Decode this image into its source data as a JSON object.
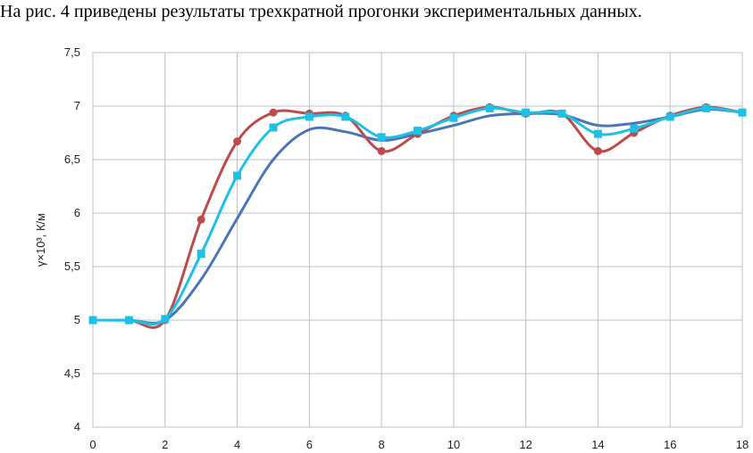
{
  "caption": "На рис. 4 приведены результаты трехкратной прогонки экспериментальных данных.",
  "chart_data": {
    "type": "line",
    "title": "",
    "xlabel": "",
    "ylabel": "γ×10³, К/м",
    "xlim": [
      0,
      18
    ],
    "ylim": [
      4,
      7.5
    ],
    "x_ticks": [
      0,
      2,
      4,
      6,
      8,
      10,
      12,
      14,
      16,
      18
    ],
    "y_ticks": [
      4,
      4.5,
      5,
      5.5,
      6,
      6.5,
      7,
      7.5
    ],
    "x_tick_labels": [
      "0",
      "2",
      "4",
      "6",
      "8",
      "10",
      "12",
      "14",
      "16",
      "18"
    ],
    "y_tick_labels": [
      "4",
      "4,5",
      "5",
      "5,5",
      "6",
      "6,5",
      "7",
      "7,5"
    ],
    "grid": true,
    "smooth": true,
    "series": [
      {
        "color": "#4a76b8",
        "marker": "none",
        "x": [
          0,
          1,
          2,
          3,
          4,
          5,
          6,
          7,
          8,
          9,
          10,
          11,
          12,
          13,
          14,
          15,
          16,
          17,
          18
        ],
        "y": [
          5.0,
          5.0,
          5.0,
          5.38,
          5.95,
          6.5,
          6.78,
          6.76,
          6.68,
          6.74,
          6.82,
          6.91,
          6.93,
          6.92,
          6.82,
          6.84,
          6.9,
          6.97,
          6.94
        ]
      },
      {
        "color": "#bf4a4a",
        "marker": "circle",
        "x": [
          0,
          1,
          2,
          3,
          4,
          5,
          6,
          7,
          8,
          9,
          10,
          11,
          12,
          13,
          14,
          15,
          16,
          17,
          18
        ],
        "y": [
          5.0,
          5.0,
          5.0,
          5.94,
          6.67,
          6.94,
          6.93,
          6.91,
          6.58,
          6.74,
          6.91,
          6.99,
          6.93,
          6.93,
          6.58,
          6.75,
          6.91,
          6.99,
          6.94
        ]
      },
      {
        "color": "#1fc0e8",
        "marker": "square",
        "x": [
          0,
          1,
          2,
          3,
          4,
          5,
          6,
          7,
          8,
          9,
          10,
          11,
          12,
          13,
          14,
          15,
          16,
          17,
          18
        ],
        "y": [
          5.0,
          5.0,
          5.01,
          5.62,
          6.35,
          6.8,
          6.9,
          6.9,
          6.71,
          6.77,
          6.89,
          6.98,
          6.94,
          6.93,
          6.74,
          6.79,
          6.9,
          6.98,
          6.94
        ]
      }
    ]
  }
}
